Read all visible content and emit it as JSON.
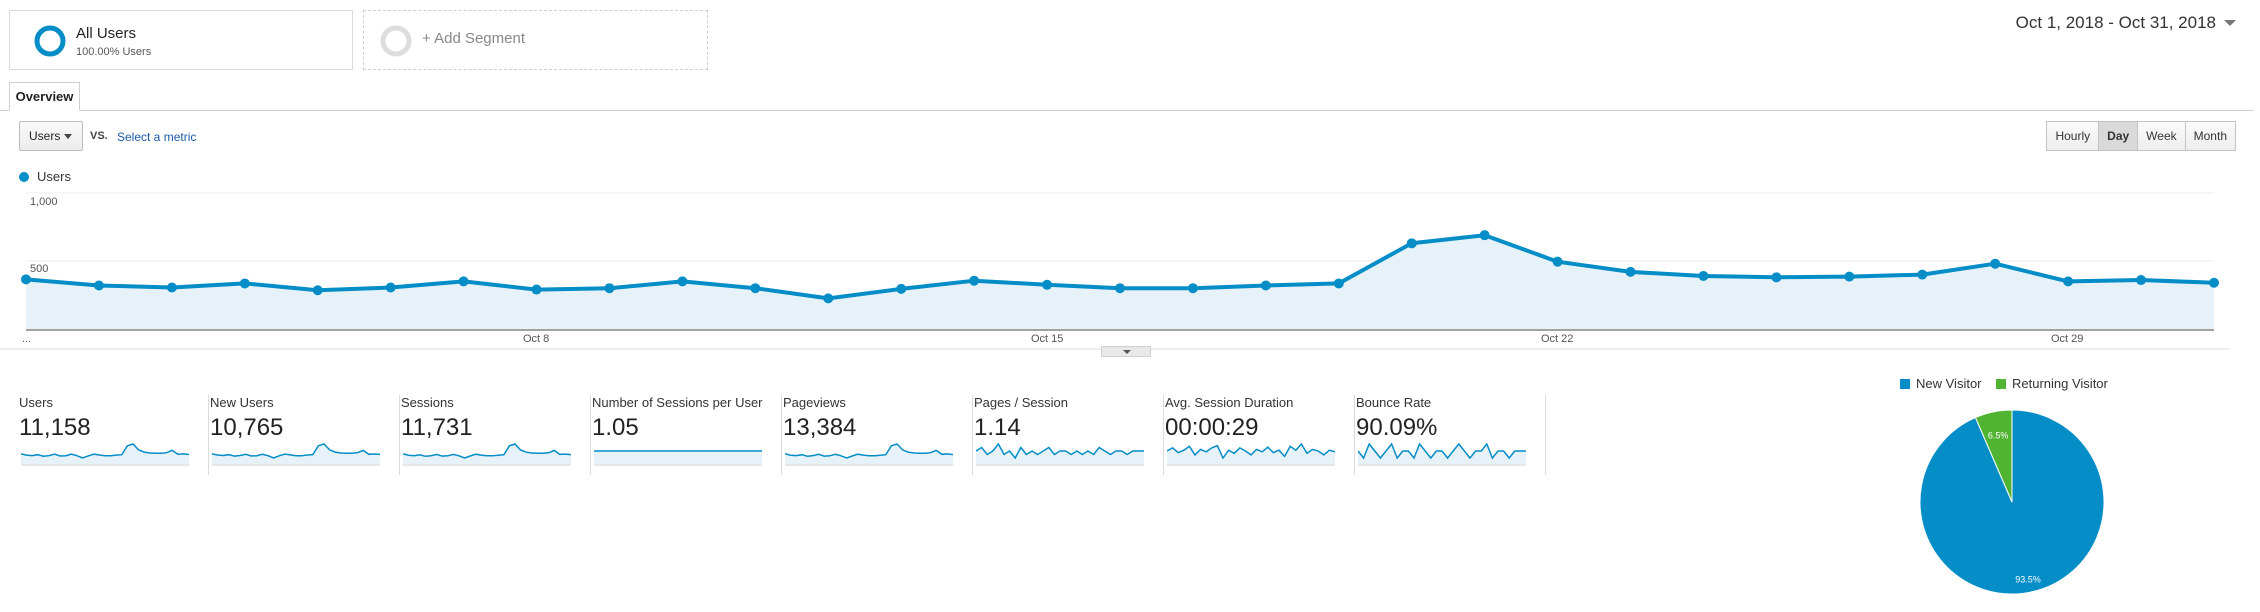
{
  "segments": {
    "all_users": {
      "title": "All Users",
      "subtitle": "100.00% Users"
    },
    "add_segment": "+ Add Segment"
  },
  "date_range": "Oct 1, 2018 - Oct 31, 2018",
  "tabs": [
    {
      "label": "Overview"
    }
  ],
  "metric_selector": {
    "value": "Users",
    "vs": "VS.",
    "select_metric": "Select a metric"
  },
  "period_buttons": [
    "Hourly",
    "Day",
    "Week",
    "Month"
  ],
  "active_period": "Day",
  "colors": {
    "series": "#058dc7",
    "fill": "#e6f2f8",
    "new_visitor": "#058dc7",
    "returning_visitor": "#50b432"
  },
  "chart_data": [
    {
      "type": "line",
      "legend": "Users",
      "x": [
        "Oct 1",
        "Oct 2",
        "Oct 3",
        "Oct 4",
        "Oct 5",
        "Oct 6",
        "Oct 7",
        "Oct 8",
        "Oct 9",
        "Oct 10",
        "Oct 11",
        "Oct 12",
        "Oct 13",
        "Oct 14",
        "Oct 15",
        "Oct 16",
        "Oct 17",
        "Oct 18",
        "Oct 19",
        "Oct 20",
        "Oct 21",
        "Oct 22",
        "Oct 23",
        "Oct 24",
        "Oct 25",
        "Oct 26",
        "Oct 27",
        "Oct 28",
        "Oct 29",
        "Oct 30",
        "Oct 31"
      ],
      "series": [
        {
          "name": "Users",
          "values": [
            365,
            320,
            305,
            335,
            285,
            305,
            350,
            290,
            300,
            350,
            300,
            225,
            295,
            355,
            325,
            300,
            300,
            320,
            335,
            630,
            690,
            495,
            420,
            390,
            380,
            385,
            400,
            480,
            350,
            360,
            340
          ]
        }
      ],
      "y_ticks": [
        "1,000",
        "500"
      ],
      "x_tick_labels": [
        "...",
        "Oct 8",
        "Oct 15",
        "Oct 22",
        "Oct 29"
      ],
      "ylim": [
        0,
        1000
      ],
      "grid": true
    },
    {
      "type": "pie",
      "categories": [
        "New Visitor",
        "Returning Visitor"
      ],
      "values": [
        93.5,
        6.5
      ],
      "labels": [
        "93.5%",
        "6.5%"
      ]
    }
  ],
  "scorecards": [
    {
      "label": "Users",
      "value": "11,158",
      "spark": [
        365,
        320,
        305,
        335,
        285,
        305,
        350,
        290,
        300,
        350,
        300,
        225,
        295,
        355,
        325,
        300,
        300,
        320,
        335,
        630,
        690,
        495,
        420,
        390,
        380,
        385,
        400,
        480,
        350,
        360,
        340
      ]
    },
    {
      "label": "New Users",
      "value": "10,765",
      "spark": [
        350,
        310,
        295,
        320,
        275,
        295,
        335,
        280,
        290,
        335,
        290,
        215,
        285,
        340,
        315,
        290,
        290,
        310,
        325,
        610,
        665,
        480,
        405,
        375,
        365,
        370,
        385,
        460,
        335,
        345,
        330
      ]
    },
    {
      "label": "Sessions",
      "value": "11,731",
      "spark": [
        385,
        335,
        320,
        350,
        300,
        320,
        365,
        305,
        315,
        365,
        315,
        240,
        310,
        370,
        340,
        315,
        315,
        335,
        350,
        660,
        720,
        515,
        440,
        410,
        400,
        405,
        420,
        500,
        365,
        375,
        355
      ]
    },
    {
      "label": "Number of Sessions per User",
      "value": "1.05",
      "spark": [
        1.05,
        1.05,
        1.05,
        1.05,
        1.05,
        1.05,
        1.05,
        1.05,
        1.05,
        1.05,
        1.05,
        1.05,
        1.05,
        1.05,
        1.05,
        1.05,
        1.05,
        1.05,
        1.05,
        1.05,
        1.05,
        1.05,
        1.05,
        1.05,
        1.05,
        1.05,
        1.05,
        1.05,
        1.05,
        1.05,
        1.05
      ]
    },
    {
      "label": "Pageviews",
      "value": "13,384",
      "spark": [
        440,
        380,
        365,
        400,
        340,
        365,
        415,
        345,
        360,
        415,
        355,
        270,
        350,
        420,
        385,
        355,
        355,
        380,
        400,
        750,
        820,
        590,
        500,
        465,
        455,
        460,
        480,
        570,
        415,
        430,
        405
      ]
    },
    {
      "label": "Pages / Session",
      "value": "1.14",
      "spark": [
        1.14,
        1.15,
        1.13,
        1.14,
        1.16,
        1.13,
        1.14,
        1.12,
        1.15,
        1.13,
        1.14,
        1.13,
        1.14,
        1.15,
        1.13,
        1.14,
        1.14,
        1.13,
        1.14,
        1.13,
        1.14,
        1.13,
        1.15,
        1.14,
        1.13,
        1.14,
        1.14,
        1.13,
        1.14,
        1.14,
        1.14
      ]
    },
    {
      "label": "Avg. Session Duration",
      "value": "00:00:29",
      "spark": [
        29,
        33,
        27,
        30,
        35,
        24,
        31,
        28,
        33,
        36,
        20,
        30,
        26,
        33,
        29,
        24,
        31,
        28,
        34,
        27,
        30,
        22,
        35,
        30,
        38,
        26,
        31,
        29,
        24,
        30,
        28
      ]
    },
    {
      "label": "Bounce Rate",
      "value": "90.09%",
      "spark": [
        90.1,
        90.0,
        90.2,
        90.1,
        90.0,
        90.1,
        90.2,
        90.0,
        90.1,
        90.1,
        90.0,
        90.2,
        90.1,
        90.0,
        90.1,
        90.1,
        90.0,
        90.1,
        90.2,
        90.1,
        90.0,
        90.1,
        90.1,
        90.2,
        90.0,
        90.1,
        90.1,
        90.0,
        90.1,
        90.1,
        90.1
      ]
    }
  ]
}
